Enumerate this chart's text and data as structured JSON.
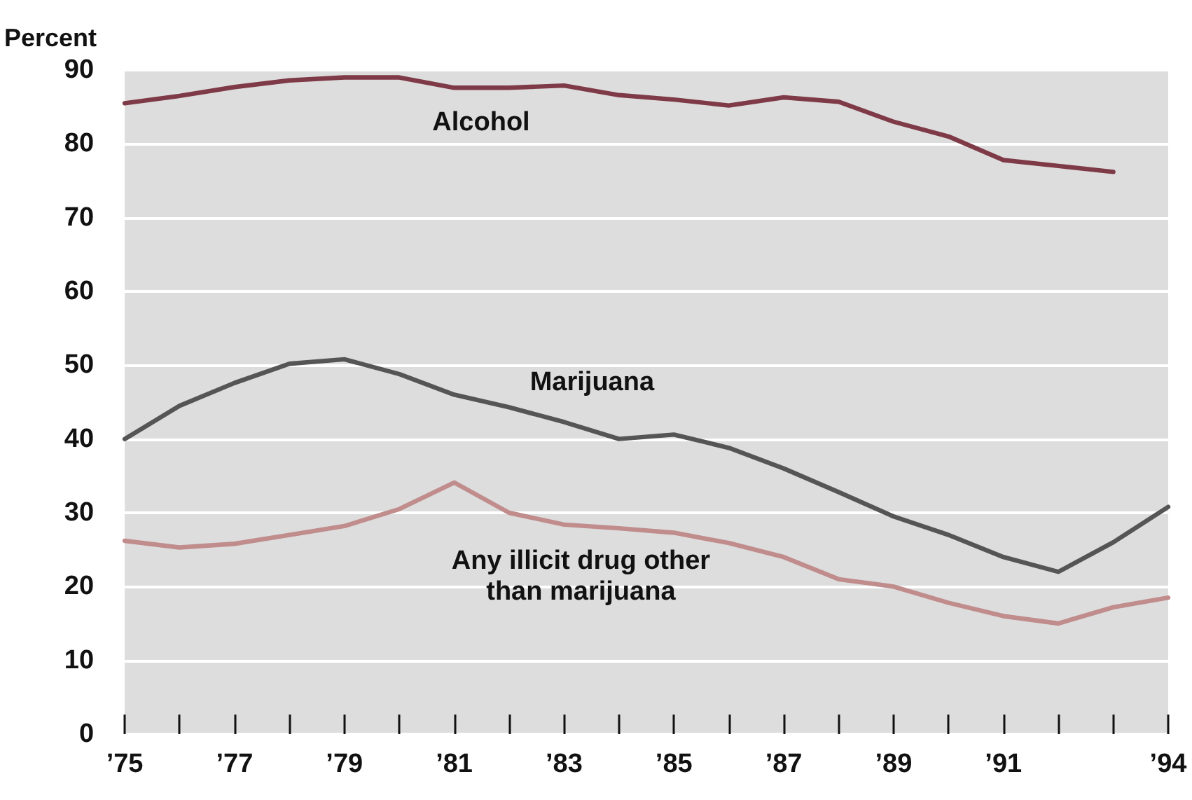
{
  "chart_data": {
    "type": "line",
    "ylabel": "Percent",
    "x": [
      1975,
      1976,
      1977,
      1978,
      1979,
      1980,
      1981,
      1982,
      1983,
      1984,
      1985,
      1986,
      1987,
      1988,
      1989,
      1990,
      1991,
      1992,
      1993,
      1994
    ],
    "series": [
      {
        "name": "Alcohol",
        "color": "#7f3a48",
        "values": [
          85.5,
          86.5,
          87.7,
          88.6,
          89,
          89,
          87.6,
          87.6,
          87.9,
          86.6,
          86,
          85.2,
          86.3,
          85.7,
          83,
          81,
          77.8,
          77,
          76.2,
          null
        ]
      },
      {
        "name": "Marijuana",
        "color": "#555555",
        "values": [
          40,
          44.5,
          47.6,
          50.2,
          50.8,
          48.8,
          46,
          44.3,
          42.3,
          40,
          40.6,
          38.8,
          36,
          32.8,
          29.5,
          27,
          24,
          22,
          26,
          30.8
        ]
      },
      {
        "name": "Any illicit drug other\nthan marijuana",
        "color": "#c08c8c",
        "values": [
          26.2,
          25.3,
          25.8,
          27,
          28.2,
          30.5,
          34.1,
          30,
          28.4,
          27.9,
          27.3,
          25.9,
          24,
          21,
          20,
          17.8,
          16,
          15,
          17.2,
          18.5
        ]
      }
    ],
    "xlim": [
      1975,
      1994
    ],
    "xticks": [
      {
        "value": 1975,
        "label": "’75"
      },
      {
        "value": 1976,
        "label": null
      },
      {
        "value": 1977,
        "label": "’77"
      },
      {
        "value": 1978,
        "label": null
      },
      {
        "value": 1979,
        "label": "’79"
      },
      {
        "value": 1980,
        "label": null
      },
      {
        "value": 1981,
        "label": "’81"
      },
      {
        "value": 1982,
        "label": null
      },
      {
        "value": 1983,
        "label": "’83"
      },
      {
        "value": 1984,
        "label": null
      },
      {
        "value": 1985,
        "label": "’85"
      },
      {
        "value": 1986,
        "label": null
      },
      {
        "value": 1987,
        "label": "’87"
      },
      {
        "value": 1988,
        "label": null
      },
      {
        "value": 1989,
        "label": "’89"
      },
      {
        "value": 1990,
        "label": null
      },
      {
        "value": 1991,
        "label": "’91"
      },
      {
        "value": 1992,
        "label": null
      },
      {
        "value": 1993,
        "label": null
      },
      {
        "value": 1994,
        "label": "’94"
      }
    ],
    "ylim": [
      0,
      90
    ],
    "yticks": [
      0,
      10,
      20,
      30,
      40,
      50,
      60,
      70,
      80,
      90
    ],
    "grid": "y",
    "legend": false,
    "marker": "none",
    "line_style": "solid"
  }
}
